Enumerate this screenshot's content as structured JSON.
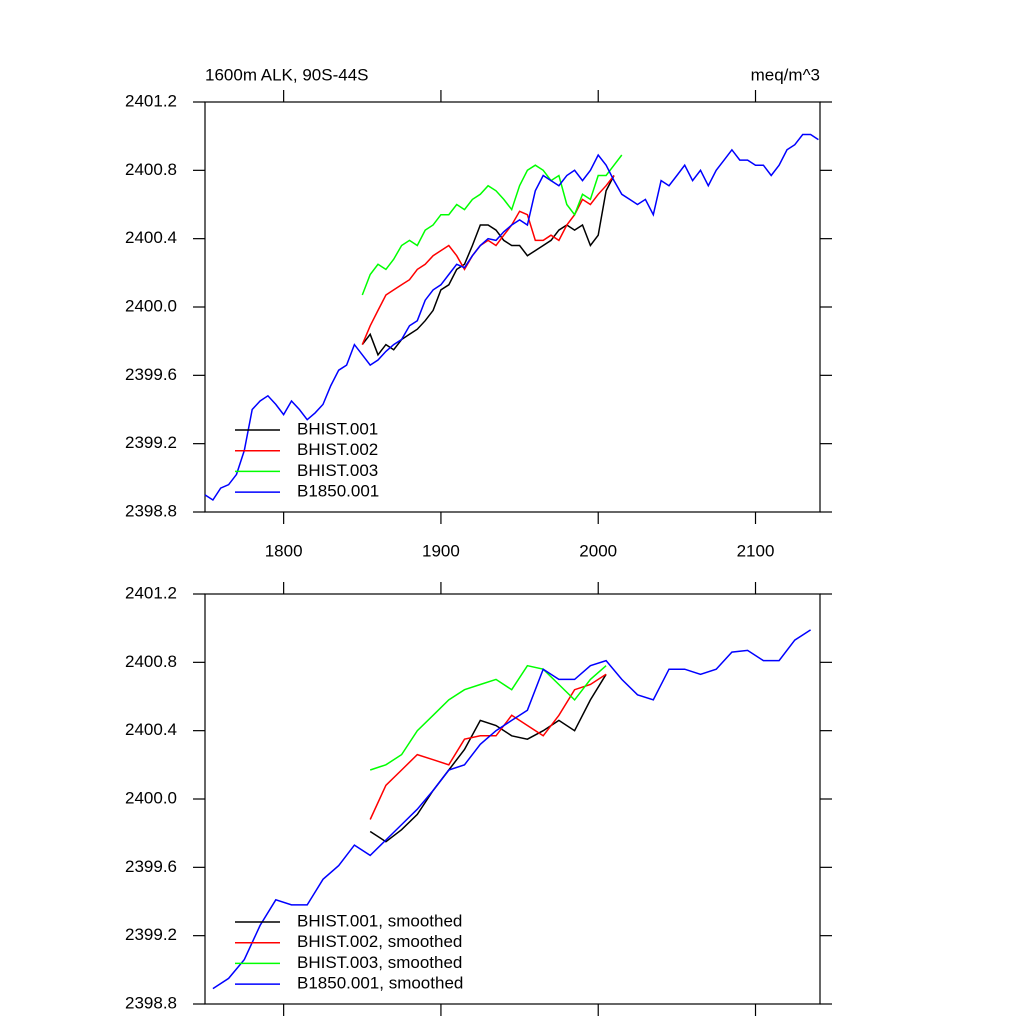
{
  "chart_data": [
    {
      "type": "line",
      "title": "1600m ALK, 90S-44S",
      "units": "meq/m^3",
      "xlim": [
        1750,
        2141
      ],
      "xticks": [
        1800,
        1900,
        2000,
        2100
      ],
      "show_xtick_labels": true,
      "ylim": [
        2398.8,
        2401.2
      ],
      "yticks": [
        2401.2,
        2400.8,
        2400.4,
        {
          "value": 2400.0,
          "label": "2400.0"
        },
        2399.6,
        2399.2,
        2398.8
      ],
      "legend": "lower left",
      "series": [
        {
          "name": "BHIST.001",
          "color": "#000000",
          "x": [
            1850,
            1855,
            1860,
            1865,
            1870,
            1875,
            1880,
            1885,
            1890,
            1895,
            1900,
            1905,
            1910,
            1915,
            1920,
            1925,
            1930,
            1935,
            1940,
            1945,
            1950,
            1955,
            1960,
            1965,
            1970,
            1975,
            1980,
            1985,
            1990,
            1995,
            2000,
            2005,
            2010
          ],
          "values": [
            2399.78,
            2399.84,
            2399.72,
            2399.78,
            2399.75,
            2399.81,
            2399.84,
            2399.87,
            2399.92,
            2399.98,
            2400.1,
            2400.13,
            2400.22,
            2400.25,
            2400.36,
            2400.48,
            2400.48,
            2400.45,
            2400.39,
            2400.36,
            2400.36,
            2400.3,
            2400.33,
            2400.36,
            2400.39,
            2400.45,
            2400.48,
            2400.45,
            2400.48,
            2400.36,
            2400.42,
            2400.68,
            2400.77
          ]
        },
        {
          "name": "BHIST.002",
          "color": "#ff0000",
          "x": [
            1850,
            1855,
            1860,
            1865,
            1870,
            1875,
            1880,
            1885,
            1890,
            1895,
            1900,
            1905,
            1910,
            1915,
            1920,
            1925,
            1930,
            1935,
            1940,
            1945,
            1950,
            1955,
            1960,
            1965,
            1970,
            1975,
            1980,
            1985,
            1990,
            1995,
            2000,
            2005,
            2010
          ],
          "values": [
            2399.78,
            2399.89,
            2399.98,
            2400.07,
            2400.1,
            2400.13,
            2400.16,
            2400.22,
            2400.25,
            2400.3,
            2400.33,
            2400.36,
            2400.3,
            2400.22,
            2400.3,
            2400.36,
            2400.39,
            2400.36,
            2400.42,
            2400.48,
            2400.56,
            2400.54,
            2400.39,
            2400.39,
            2400.42,
            2400.39,
            2400.48,
            2400.54,
            2400.63,
            2400.6,
            2400.66,
            2400.71,
            2400.77
          ]
        },
        {
          "name": "BHIST.003",
          "color": "#00ff00",
          "x": [
            1850,
            1855,
            1860,
            1865,
            1870,
            1875,
            1880,
            1885,
            1890,
            1895,
            1900,
            1905,
            1910,
            1915,
            1920,
            1925,
            1930,
            1935,
            1940,
            1945,
            1950,
            1955,
            1960,
            1965,
            1970,
            1975,
            1980,
            1985,
            1990,
            1995,
            2000,
            2005,
            2010,
            2015
          ],
          "values": [
            2400.07,
            2400.19,
            2400.25,
            2400.22,
            2400.28,
            2400.36,
            2400.39,
            2400.36,
            2400.45,
            2400.48,
            2400.54,
            2400.54,
            2400.6,
            2400.57,
            2400.63,
            2400.66,
            2400.71,
            2400.68,
            2400.63,
            2400.57,
            2400.71,
            2400.8,
            2400.83,
            2400.8,
            2400.74,
            2400.77,
            2400.6,
            2400.54,
            2400.66,
            2400.63,
            2400.77,
            2400.77,
            2400.83,
            2400.89
          ]
        },
        {
          "name": "B1850.001",
          "color": "#0000ff",
          "x": [
            1750,
            1755,
            1760,
            1765,
            1770,
            1775,
            1780,
            1785,
            1790,
            1795,
            1800,
            1805,
            1810,
            1815,
            1820,
            1825,
            1830,
            1835,
            1840,
            1845,
            1850,
            1855,
            1860,
            1865,
            1870,
            1875,
            1880,
            1885,
            1890,
            1895,
            1900,
            1905,
            1910,
            1915,
            1920,
            1925,
            1930,
            1935,
            1940,
            1945,
            1950,
            1955,
            1960,
            1965,
            1970,
            1975,
            1980,
            1985,
            1990,
            1995,
            2000,
            2005,
            2010,
            2015,
            2020,
            2025,
            2030,
            2035,
            2040,
            2045,
            2050,
            2055,
            2060,
            2065,
            2070,
            2075,
            2080,
            2085,
            2090,
            2095,
            2100,
            2105,
            2110,
            2115,
            2120,
            2125,
            2130,
            2135,
            2140
          ],
          "values": [
            2398.9,
            2398.87,
            2398.94,
            2398.96,
            2399.02,
            2399.16,
            2399.4,
            2399.45,
            2399.48,
            2399.43,
            2399.37,
            2399.45,
            2399.4,
            2399.34,
            2399.38,
            2399.43,
            2399.54,
            2399.63,
            2399.66,
            2399.78,
            2399.72,
            2399.66,
            2399.69,
            2399.74,
            2399.78,
            2399.81,
            2399.89,
            2399.92,
            2400.04,
            2400.1,
            2400.13,
            2400.19,
            2400.25,
            2400.23,
            2400.3,
            2400.36,
            2400.4,
            2400.39,
            2400.44,
            2400.48,
            2400.51,
            2400.48,
            2400.68,
            2400.77,
            2400.74,
            2400.71,
            2400.77,
            2400.8,
            2400.74,
            2400.8,
            2400.89,
            2400.83,
            2400.74,
            2400.66,
            2400.63,
            2400.6,
            2400.63,
            2400.54,
            2400.74,
            2400.71,
            2400.77,
            2400.83,
            2400.74,
            2400.8,
            2400.71,
            2400.8,
            2400.86,
            2400.92,
            2400.86,
            2400.86,
            2400.83,
            2400.83,
            2400.77,
            2400.83,
            2400.92,
            2400.95,
            2401.01,
            2401.01,
            2400.98
          ]
        }
      ]
    },
    {
      "type": "line",
      "xlim": [
        1750,
        2141
      ],
      "xticks": [
        1800,
        1900,
        2000,
        2100
      ],
      "show_xtick_labels": false,
      "ylim": [
        2398.8,
        2401.2
      ],
      "yticks": [
        2401.2,
        2400.8,
        2400.4,
        {
          "value": 2400.0,
          "label": "2400.0"
        },
        2399.6,
        2399.2,
        2398.8
      ],
      "legend": "lower left",
      "series": [
        {
          "name": "BHIST.001, smoothed",
          "color": "#000000",
          "x": [
            1855,
            1865,
            1875,
            1885,
            1895,
            1905,
            1915,
            1925,
            1935,
            1945,
            1955,
            1965,
            1975,
            1985,
            1995,
            2005
          ],
          "values": [
            2399.81,
            2399.75,
            2399.82,
            2399.91,
            2400.05,
            2400.17,
            2400.29,
            2400.46,
            2400.43,
            2400.37,
            2400.35,
            2400.4,
            2400.46,
            2400.4,
            2400.58,
            2400.73
          ]
        },
        {
          "name": "BHIST.002, smoothed",
          "color": "#ff0000",
          "x": [
            1855,
            1865,
            1875,
            1885,
            1895,
            1905,
            1915,
            1925,
            1935,
            1945,
            1955,
            1965,
            1975,
            1985,
            1995,
            2005
          ],
          "values": [
            2399.88,
            2400.08,
            2400.17,
            2400.26,
            2400.23,
            2400.2,
            2400.35,
            2400.37,
            2400.37,
            2400.49,
            2400.43,
            2400.37,
            2400.49,
            2400.64,
            2400.67,
            2400.73
          ]
        },
        {
          "name": "BHIST.003, smoothed",
          "color": "#00ff00",
          "x": [
            1855,
            1865,
            1875,
            1885,
            1895,
            1905,
            1915,
            1925,
            1935,
            1945,
            1955,
            1965,
            1975,
            1985,
            1995,
            2005
          ],
          "values": [
            2400.17,
            2400.2,
            2400.26,
            2400.4,
            2400.49,
            2400.58,
            2400.64,
            2400.67,
            2400.7,
            2400.64,
            2400.78,
            2400.76,
            2400.67,
            2400.58,
            2400.7,
            2400.78
          ]
        },
        {
          "name": "B1850.001, smoothed",
          "color": "#0000ff",
          "x": [
            1755,
            1765,
            1775,
            1785,
            1795,
            1805,
            1815,
            1825,
            1835,
            1845,
            1855,
            1865,
            1875,
            1885,
            1895,
            1905,
            1915,
            1925,
            1935,
            1945,
            1955,
            1965,
            1975,
            1985,
            1995,
            2005,
            2015,
            2025,
            2035,
            2045,
            2055,
            2065,
            2075,
            2085,
            2095,
            2105,
            2115,
            2125,
            2135
          ],
          "values": [
            2398.89,
            2398.95,
            2399.06,
            2399.26,
            2399.41,
            2399.38,
            2399.38,
            2399.53,
            2399.61,
            2399.73,
            2399.67,
            2399.76,
            2399.85,
            2399.94,
            2400.05,
            2400.17,
            2400.2,
            2400.32,
            2400.4,
            2400.46,
            2400.52,
            2400.76,
            2400.7,
            2400.7,
            2400.78,
            2400.81,
            2400.7,
            2400.61,
            2400.58,
            2400.76,
            2400.76,
            2400.73,
            2400.76,
            2400.86,
            2400.87,
            2400.81,
            2400.81,
            2400.93,
            2400.99
          ]
        }
      ]
    }
  ]
}
